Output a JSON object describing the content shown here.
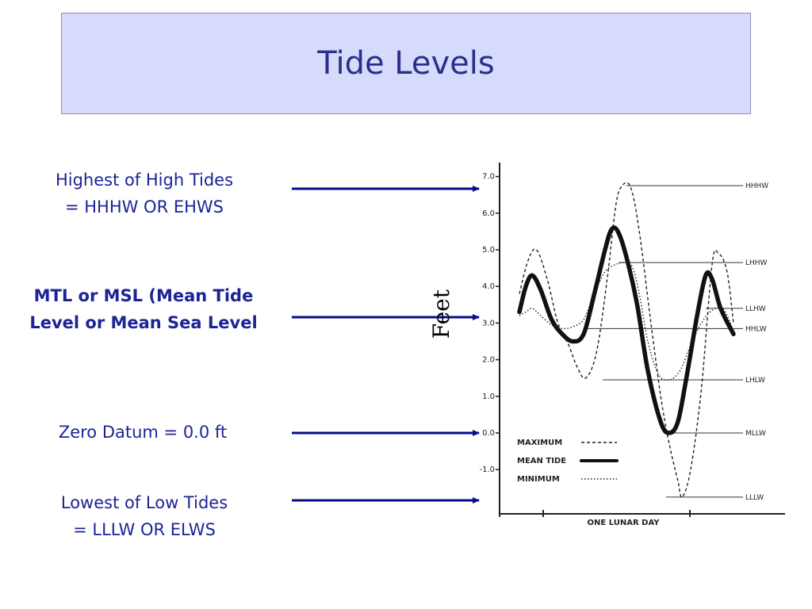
{
  "title": "Tide Levels",
  "labels": {
    "hhhw": [
      "Highest of High Tides",
      "= HHHW OR EHWS"
    ],
    "mtl": [
      "MTL or MSL (Mean Tide",
      "Level or Mean Sea Level"
    ],
    "zero": "Zero Datum = 0.0 ft",
    "lllw": [
      "Lowest of Low Tides",
      "= LLLW OR ELWS"
    ]
  },
  "colors": {
    "label_text": "#1c2495",
    "arrow": "#0a0a8c",
    "title_band": "#d6dbfb"
  },
  "chart_data": {
    "type": "line",
    "ylabel": "Feet",
    "xlabel": "ONE LUNAR DAY",
    "yticks": [
      "7.0",
      "6.0",
      "5.0",
      "4.0",
      "3.0",
      "2.0",
      "1.0",
      "0.0",
      "-1.0"
    ],
    "ylim": [
      -1.8,
      7.2
    ],
    "xlim": [
      0,
      10
    ],
    "level_lines": [
      {
        "label": "HHHW",
        "value": 6.75
      },
      {
        "label": "LHHW",
        "value": 4.65
      },
      {
        "label": "LLHW",
        "value": 3.4
      },
      {
        "label": "HHLW",
        "value": 2.85
      },
      {
        "label": "LHLW",
        "value": 1.45
      },
      {
        "label": "MLLW",
        "value": 0.0
      },
      {
        "label": "LLLW",
        "value": -1.75
      }
    ],
    "series": [
      {
        "name": "MAXIMUM",
        "style": "dashed",
        "points": [
          [
            0.0,
            3.8
          ],
          [
            0.4,
            4.7
          ],
          [
            0.8,
            5.0
          ],
          [
            1.3,
            4.2
          ],
          [
            1.8,
            3.0
          ],
          [
            2.3,
            2.4
          ],
          [
            2.7,
            1.8
          ],
          [
            3.1,
            1.5
          ],
          [
            3.6,
            2.2
          ],
          [
            4.1,
            4.2
          ],
          [
            4.5,
            6.2
          ],
          [
            4.8,
            6.75
          ],
          [
            5.2,
            6.7
          ],
          [
            5.6,
            5.5
          ],
          [
            6.1,
            3.2
          ],
          [
            6.6,
            1.0
          ],
          [
            7.0,
            -0.3
          ],
          [
            7.4,
            -1.3
          ],
          [
            7.6,
            -1.75
          ],
          [
            8.0,
            -1.0
          ],
          [
            8.5,
            1.2
          ],
          [
            9.0,
            4.6
          ],
          [
            9.3,
            4.9
          ],
          [
            9.7,
            4.4
          ],
          [
            10.0,
            3.0
          ]
        ]
      },
      {
        "name": "MEAN TIDE",
        "style": "thick",
        "points": [
          [
            0.0,
            3.3
          ],
          [
            0.3,
            4.0
          ],
          [
            0.6,
            4.3
          ],
          [
            1.0,
            3.9
          ],
          [
            1.5,
            3.1
          ],
          [
            2.0,
            2.7
          ],
          [
            2.5,
            2.5
          ],
          [
            3.0,
            2.7
          ],
          [
            3.5,
            3.8
          ],
          [
            4.0,
            5.0
          ],
          [
            4.3,
            5.55
          ],
          [
            4.6,
            5.5
          ],
          [
            5.0,
            4.8
          ],
          [
            5.5,
            3.5
          ],
          [
            6.0,
            1.7
          ],
          [
            6.6,
            0.3
          ],
          [
            7.0,
            0.0
          ],
          [
            7.4,
            0.3
          ],
          [
            7.8,
            1.5
          ],
          [
            8.3,
            3.2
          ],
          [
            8.7,
            4.3
          ],
          [
            9.0,
            4.2
          ],
          [
            9.4,
            3.4
          ],
          [
            10.0,
            2.7
          ]
        ]
      },
      {
        "name": "MINIMUM",
        "style": "dotted",
        "points": [
          [
            0.0,
            3.2
          ],
          [
            0.3,
            3.3
          ],
          [
            0.6,
            3.4
          ],
          [
            1.0,
            3.2
          ],
          [
            1.5,
            2.95
          ],
          [
            2.0,
            2.85
          ],
          [
            2.5,
            2.9
          ],
          [
            3.0,
            3.1
          ],
          [
            3.5,
            3.8
          ],
          [
            4.0,
            4.4
          ],
          [
            4.5,
            4.6
          ],
          [
            5.0,
            4.65
          ],
          [
            5.3,
            4.5
          ],
          [
            5.6,
            3.8
          ],
          [
            6.0,
            2.5
          ],
          [
            6.5,
            1.6
          ],
          [
            7.0,
            1.45
          ],
          [
            7.5,
            1.7
          ],
          [
            8.0,
            2.4
          ],
          [
            8.5,
            3.0
          ],
          [
            9.0,
            3.35
          ],
          [
            9.5,
            3.4
          ],
          [
            10.0,
            2.8
          ]
        ]
      }
    ],
    "legend": [
      {
        "name": "MAXIMUM",
        "style": "dashed"
      },
      {
        "name": "MEAN  TIDE",
        "style": "thick"
      },
      {
        "name": "MINIMUM",
        "style": "dotted"
      }
    ],
    "legend_position": "bottom-left",
    "grid": false
  }
}
